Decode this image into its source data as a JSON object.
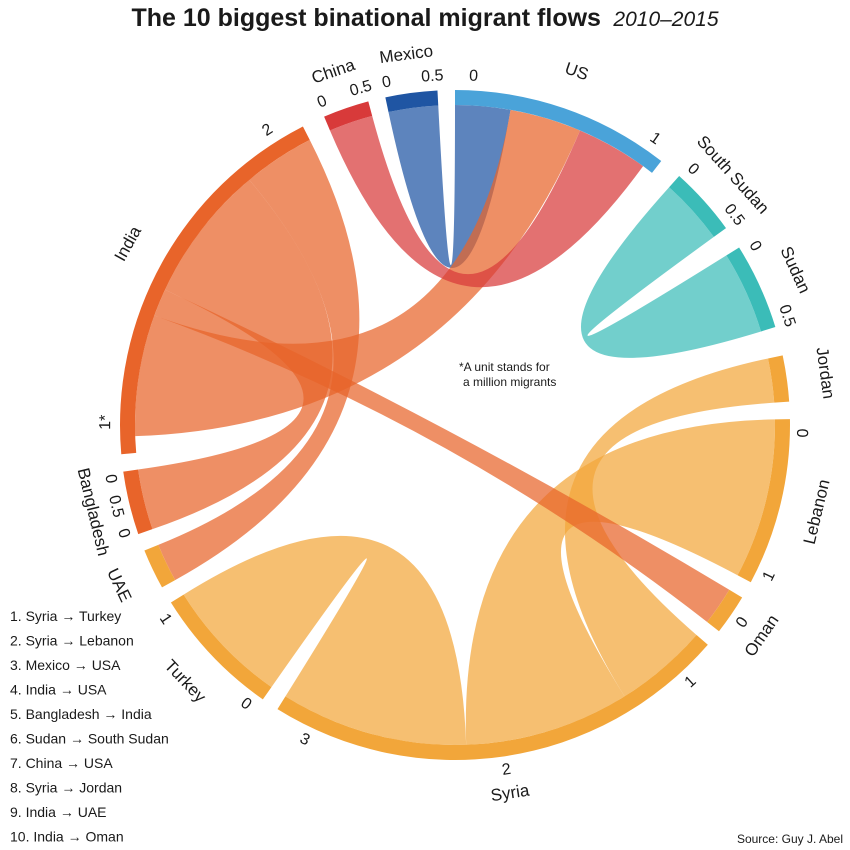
{
  "title": {
    "main": "The 10 biggest binational migrant flows",
    "sub": "2010–2015"
  },
  "note": [
    "*A unit stands for",
    "a million migrants"
  ],
  "source": "Source: Guy J. Abel",
  "colors": {
    "US": "#4aa3d9",
    "South Sudan": "#3bbcb8",
    "Sudan": "#3bbcb8",
    "Jordan": "#f2a63a",
    "Lebanon": "#f2a63a",
    "Oman": "#f2a63a",
    "Syria": "#f2a63a",
    "Turkey": "#f2a63a",
    "UAE": "#f2a63a",
    "Bangladesh": "#e8642a",
    "India": "#e8642a",
    "China": "#d83a3a",
    "Mexico": "#1f55a3"
  },
  "legend": [
    "1.  Syria → Turkey",
    "2.  Syria → Lebanon",
    "3.  Mexico → USA",
    "4.  India → USA",
    "5.  Bangladesh → India",
    "6.  Sudan → South Sudan",
    "7.  China → USA",
    "8.  Syria → Jordan",
    "9.  India → UAE",
    "10. India → Oman"
  ],
  "chart_data": {
    "type": "chord",
    "unit": "million migrants",
    "regions": [
      {
        "name": "US",
        "ticks": [
          "0",
          "1"
        ]
      },
      {
        "name": "South Sudan",
        "ticks": [
          "0",
          "0.5"
        ]
      },
      {
        "name": "Sudan",
        "ticks": [
          "0",
          "0.5"
        ]
      },
      {
        "name": "Jordan",
        "ticks": []
      },
      {
        "name": "Lebanon",
        "ticks": [
          "0",
          "1"
        ]
      },
      {
        "name": "Oman",
        "ticks": [
          "0"
        ]
      },
      {
        "name": "Syria",
        "ticks": [
          "1",
          "2",
          "3"
        ]
      },
      {
        "name": "Turkey",
        "ticks": [
          "0",
          "1"
        ]
      },
      {
        "name": "UAE",
        "ticks": []
      },
      {
        "name": "Bangladesh",
        "ticks": [
          "0",
          "0.5",
          "0"
        ]
      },
      {
        "name": "India",
        "ticks": [
          "1*",
          "2"
        ]
      },
      {
        "name": "China",
        "ticks": [
          "0",
          "0.5"
        ]
      },
      {
        "name": "Mexico",
        "ticks": [
          "0",
          "0.5"
        ]
      }
    ],
    "flows": [
      {
        "from": "Syria",
        "to": "Turkey"
      },
      {
        "from": "Syria",
        "to": "Lebanon"
      },
      {
        "from": "Mexico",
        "to": "US"
      },
      {
        "from": "India",
        "to": "US"
      },
      {
        "from": "Bangladesh",
        "to": "India"
      },
      {
        "from": "Sudan",
        "to": "South Sudan"
      },
      {
        "from": "China",
        "to": "US"
      },
      {
        "from": "Syria",
        "to": "Jordan"
      },
      {
        "from": "India",
        "to": "UAE"
      },
      {
        "from": "India",
        "to": "Oman"
      }
    ]
  }
}
